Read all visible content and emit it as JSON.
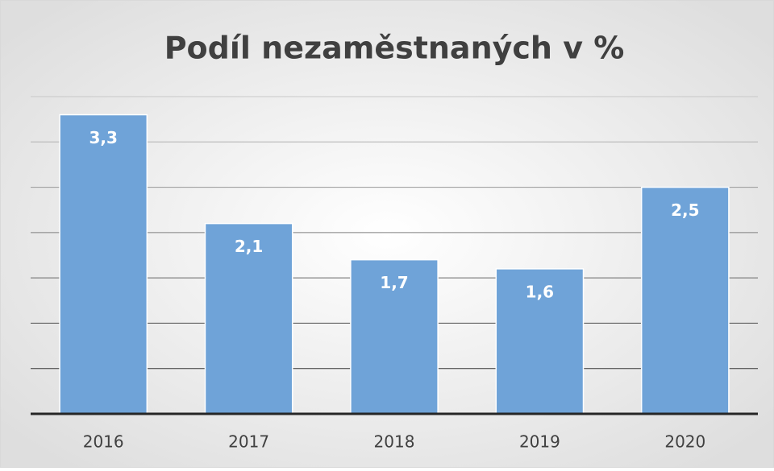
{
  "chart_data": {
    "type": "bar",
    "title": "Podíl nezaměstnaných v %",
    "categories": [
      "2016",
      "2017",
      "2018",
      "2019",
      "2020"
    ],
    "values": [
      3.3,
      2.1,
      1.7,
      1.6,
      2.5
    ],
    "value_labels": [
      "3,3",
      "2,1",
      "1,7",
      "1,6",
      "2,5"
    ],
    "color": "#6fa3d8",
    "ylim": [
      0,
      3.5
    ],
    "yticks": [
      0,
      0.5,
      1,
      1.5,
      2,
      2.5,
      3,
      3.5
    ],
    "grid": true
  }
}
